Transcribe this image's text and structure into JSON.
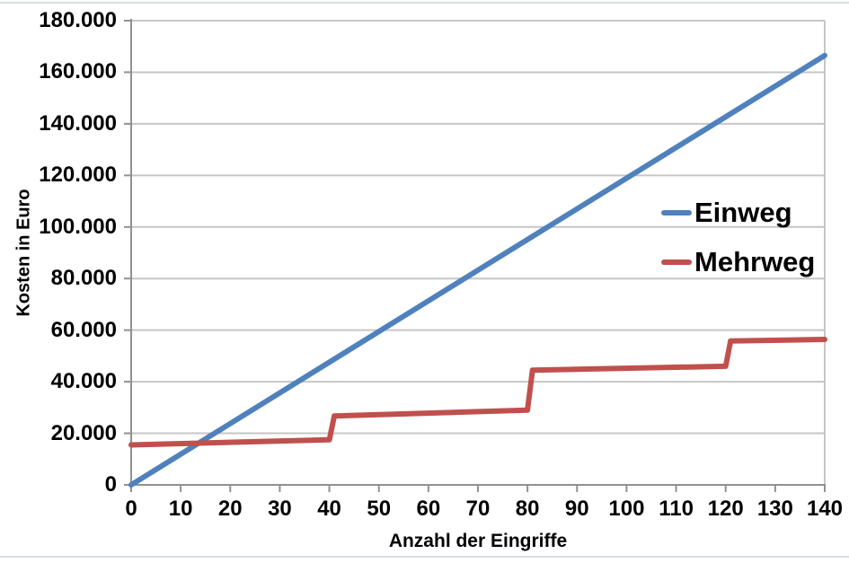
{
  "page": {
    "background_color": "#ffffff",
    "edge_line_color": "#d9dde1"
  },
  "chart_data": {
    "type": "line",
    "title": "",
    "xlabel": "Anzahl der Eingriffe",
    "ylabel": "Kosten in Euro",
    "xlim": [
      0,
      140
    ],
    "ylim": [
      0,
      180000
    ],
    "grid": "horizontal",
    "legend_position": "inside-right",
    "axis_color": "#919191",
    "gridline_color": "#c6c6c6",
    "x_ticks": [
      0,
      10,
      20,
      30,
      40,
      50,
      60,
      70,
      80,
      90,
      100,
      110,
      120,
      130,
      140
    ],
    "x_tick_labels": [
      "0",
      "10",
      "20",
      "30",
      "40",
      "50",
      "60",
      "70",
      "80",
      "90",
      "100",
      "110",
      "120",
      "130",
      "140"
    ],
    "y_ticks": [
      0,
      20000,
      40000,
      60000,
      80000,
      100000,
      120000,
      140000,
      160000,
      180000
    ],
    "y_tick_labels": [
      "0",
      "20.000",
      "40.000",
      "60.000",
      "80.000",
      "100.000",
      "120.000",
      "140.000",
      "160.000",
      "180.000"
    ],
    "series": [
      {
        "name": "Einweg",
        "color": "#4f81bd",
        "points": [
          [
            0,
            0
          ],
          [
            140,
            166500
          ]
        ]
      },
      {
        "name": "Mehrweg",
        "color": "#c0504d",
        "points": [
          [
            0,
            15500
          ],
          [
            40,
            17500
          ],
          [
            41,
            26700
          ],
          [
            80,
            29000
          ],
          [
            81,
            44500
          ],
          [
            120,
            46000
          ],
          [
            121,
            55800
          ],
          [
            140,
            56400
          ]
        ]
      }
    ]
  }
}
